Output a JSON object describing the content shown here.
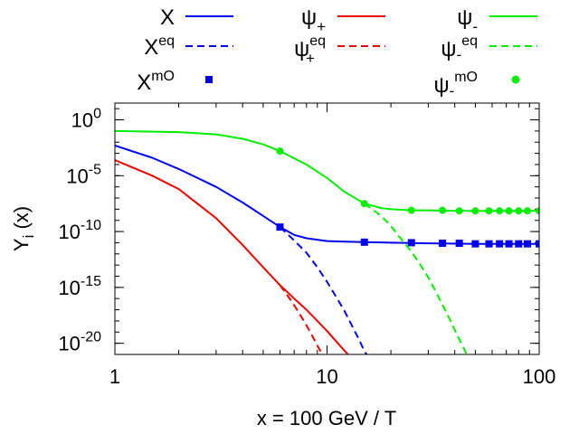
{
  "chart_data": {
    "type": "line",
    "xscale": "log",
    "yscale": "log",
    "xlim": [
      1,
      100
    ],
    "ylim_exponent": [
      -21,
      1.5
    ],
    "xlabel": "x = 100 GeV / T",
    "ylabel": {
      "base": "Y",
      "sub": "i",
      "tail": " (x)"
    },
    "x_ticks": [
      {
        "value": 1,
        "label": "1"
      },
      {
        "value": 10,
        "label": "10"
      },
      {
        "value": 100,
        "label": "100"
      }
    ],
    "y_ticks": [
      {
        "exp": 0,
        "base": "10",
        "sup": "0"
      },
      {
        "exp": -5,
        "base": "10",
        "sup": "-5"
      },
      {
        "exp": -10,
        "base": "10",
        "sup": "-10"
      },
      {
        "exp": -15,
        "base": "10",
        "sup": "-15"
      },
      {
        "exp": -20,
        "base": "10",
        "sup": "-20"
      }
    ],
    "legend_position": "top",
    "legend": [
      {
        "base": "X",
        "sup": "",
        "sub": "",
        "style": "solid",
        "color": "#0000ee",
        "marker": "none"
      },
      {
        "base": "X",
        "sup": "eq",
        "sub": "",
        "style": "dashed",
        "color": "#0000ee",
        "marker": "none"
      },
      {
        "base": "X",
        "sup": "mO",
        "sub": "",
        "style": "points",
        "color": "#0000ee",
        "marker": "square"
      },
      {
        "base": "ψ",
        "sup": "",
        "sub": "+",
        "style": "solid",
        "color": "#ee0000",
        "marker": "none"
      },
      {
        "base": "ψ",
        "sup": "eq",
        "sub": "+",
        "style": "dashed",
        "color": "#ee0000",
        "marker": "none"
      },
      {
        "base": "ψ",
        "sup": "",
        "sub": "-",
        "style": "solid",
        "color": "#00ee00",
        "marker": "none"
      },
      {
        "base": "ψ",
        "sup": "eq",
        "sub": "-",
        "style": "dashed",
        "color": "#00ee00",
        "marker": "none"
      },
      {
        "base": "ψ",
        "sup": "mO",
        "sub": "-",
        "style": "points",
        "color": "#00ee00",
        "marker": "circle"
      }
    ],
    "series": [
      {
        "name": "X",
        "style": "solid",
        "color": "#0000ee",
        "x": [
          1,
          1.5,
          2,
          3,
          4,
          5,
          6,
          7,
          8,
          10,
          12,
          15,
          20,
          30,
          50,
          100
        ],
        "log10y": [
          -2.3,
          -3.4,
          -4.4,
          -6.0,
          -7.4,
          -8.6,
          -9.6,
          -10.3,
          -10.6,
          -10.85,
          -10.9,
          -10.95,
          -11.0,
          -11.05,
          -11.1,
          -11.1
        ]
      },
      {
        "name": "X^eq",
        "style": "dashed",
        "color": "#0000ee",
        "x": [
          6,
          7,
          8,
          9,
          10,
          11,
          12,
          13,
          14,
          15,
          16,
          17
        ],
        "log10y": [
          -9.6,
          -10.8,
          -11.9,
          -13.2,
          -14.5,
          -15.8,
          -17.0,
          -18.3,
          -19.5,
          -20.7,
          -21.5,
          -22.3
        ]
      },
      {
        "name": "X^mO",
        "style": "points",
        "color": "#0000ee",
        "x": [
          6,
          15,
          25,
          35,
          42,
          50,
          58,
          65,
          72,
          80,
          88,
          100
        ],
        "log10y": [
          -9.6,
          -10.95,
          -11.0,
          -11.05,
          -11.05,
          -11.1,
          -11.1,
          -11.1,
          -11.1,
          -11.1,
          -11.1,
          -11.1
        ]
      },
      {
        "name": "ψ+",
        "style": "solid",
        "color": "#ee0000",
        "x": [
          1,
          1.5,
          2,
          3,
          4,
          5,
          6,
          7,
          8,
          10,
          12,
          14
        ],
        "log10y": [
          -3.6,
          -5.0,
          -6.2,
          -8.8,
          -11.2,
          -13.2,
          -14.8,
          -16.0,
          -17.0,
          -18.9,
          -20.6,
          -22.0
        ]
      },
      {
        "name": "ψ+^eq",
        "style": "dashed",
        "color": "#ee0000",
        "x": [
          6,
          6.5,
          7,
          7.5,
          8,
          8.5,
          9,
          9.5,
          10
        ],
        "log10y": [
          -14.8,
          -15.7,
          -16.6,
          -17.5,
          -18.4,
          -19.3,
          -20.2,
          -21.0,
          -21.8
        ]
      },
      {
        "name": "ψ-",
        "style": "solid",
        "color": "#00ee00",
        "x": [
          1,
          2,
          3,
          4,
          5,
          6,
          8,
          10,
          12,
          15,
          18,
          20,
          25,
          30,
          40,
          60,
          100
        ],
        "log10y": [
          -1.0,
          -1.1,
          -1.3,
          -1.7,
          -2.2,
          -2.8,
          -4.0,
          -5.2,
          -6.4,
          -7.5,
          -7.9,
          -8.0,
          -8.1,
          -8.1,
          -8.15,
          -8.15,
          -8.15
        ]
      },
      {
        "name": "ψ-^eq",
        "style": "dashed",
        "color": "#00ee00",
        "x": [
          15,
          18,
          20,
          22,
          25,
          28,
          30,
          33,
          36,
          40,
          45,
          50
        ],
        "log10y": [
          -7.5,
          -8.6,
          -9.5,
          -10.5,
          -11.8,
          -13.2,
          -14.1,
          -15.6,
          -17.0,
          -18.8,
          -20.8,
          -22.5
        ]
      },
      {
        "name": "ψ-^mO",
        "style": "points",
        "color": "#00ee00",
        "x": [
          6,
          15,
          25,
          35,
          42,
          50,
          58,
          65,
          72,
          80,
          88,
          100
        ],
        "log10y": [
          -2.8,
          -7.5,
          -8.1,
          -8.1,
          -8.15,
          -8.15,
          -8.15,
          -8.15,
          -8.15,
          -8.15,
          -8.15,
          -8.15
        ]
      }
    ]
  }
}
